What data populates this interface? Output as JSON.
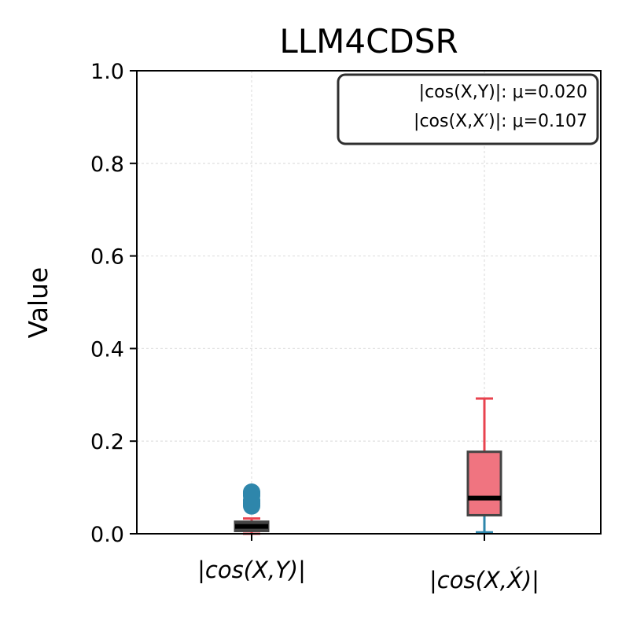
{
  "chart_data": {
    "type": "box",
    "title": "LLM4CDSR",
    "ylabel": "Value",
    "xlabel": "",
    "ylim": [
      0,
      1
    ],
    "yticks": [
      "0.0",
      "0.2",
      "0.4",
      "0.6",
      "0.8",
      "1.0"
    ],
    "grid": true,
    "legend_placement": "top-right",
    "annotation_lines": [
      "|cos(X,Y)|: μ=0.020",
      "|cos(X,X′)|: μ=0.107"
    ],
    "categories": [
      "|cos(X,Y)|",
      "|cos(X,X́)|"
    ],
    "boxes": [
      {
        "category": "|cos(X,Y)|",
        "whisker_low": 0.0,
        "q1": 0.006,
        "median": 0.016,
        "q3": 0.026,
        "whisker_high": 0.033,
        "outliers": [
          0.06,
          0.063,
          0.066,
          0.068,
          0.07,
          0.072,
          0.082,
          0.086,
          0.088,
          0.09
        ],
        "box_color": "#484848",
        "whisker_color": "#e8434f",
        "flier_color": "#2e86ab"
      },
      {
        "category": "|cos(X,X́)|",
        "whisker_low": 0.003,
        "q1": 0.04,
        "median": 0.077,
        "q3": 0.177,
        "whisker_high": 0.292,
        "outliers": [],
        "box_color": "#f07480",
        "whisker_color": "#e8434f",
        "lower_whisker_color": "#2e86ab",
        "flier_color": "#2e86ab"
      }
    ]
  }
}
